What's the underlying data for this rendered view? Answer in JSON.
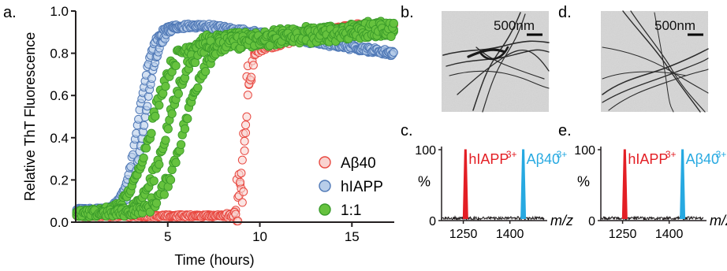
{
  "panels": {
    "a": "a.",
    "b": "b.",
    "c": "c.",
    "d": "d.",
    "e": "e."
  },
  "chart_data": {
    "type": "scatter",
    "ylabel": "Relative ThT Fluorescence",
    "xlabel": "Time (hours)",
    "xlim": [
      0,
      17.3
    ],
    "ylim": [
      0,
      1.0
    ],
    "xticks": [
      "5",
      "10",
      "15"
    ],
    "yticks": [
      "0.0",
      "0.2",
      "0.4",
      "0.6",
      "0.8",
      "1.0"
    ],
    "legend_placement": "bottom-right",
    "series": [
      {
        "name": "Aβ40",
        "color": "#e8473f",
        "fill": "#f9d3d0",
        "curve": {
          "y0": 0.03,
          "ymax": 0.82,
          "x_mid": 9.2,
          "k": 7.0,
          "late_rise_to": 0.93,
          "late_rise_start": 9.8,
          "late_rise_end": 15.0
        }
      },
      {
        "name": "hIAPP",
        "color": "#4f78b6",
        "fill": "#b8cde9",
        "curve": {
          "y0": 0.06,
          "ymax": 0.93,
          "x_mid": 3.6,
          "k": 2.6,
          "plateau_drift_to": 0.8,
          "drift_start": 7.0,
          "drift_end": 17.3
        }
      },
      {
        "name": "1:1",
        "color": "#3a9b2a",
        "fill": "#66c23e",
        "curve": {
          "y0": 0.04,
          "ymax": 0.86,
          "x_mid": 5.0,
          "k": 1.6,
          "late_rise_to": 0.92,
          "late_rise_start": 9.0,
          "late_rise_end": 17.3
        }
      }
    ]
  },
  "tem": {
    "b": {
      "scale_label": "500nm"
    },
    "d": {
      "scale_label": "500nm"
    }
  },
  "mass_spec": {
    "c": {
      "ylabel": "%",
      "xlabel": "m/z",
      "yticks": [
        "0",
        "100"
      ],
      "xticks": [
        "1250",
        "1400"
      ],
      "peaks": [
        {
          "label": "hIAPP",
          "charge": "3+",
          "mz": 1257,
          "height": 100,
          "color": "#e31e24"
        },
        {
          "label": "Aβ40",
          "charge": "3+",
          "mz": 1443,
          "height": 100,
          "color": "#27a9e1"
        }
      ]
    },
    "e": {
      "ylabel": "%",
      "xlabel": "m/z",
      "yticks": [
        "0",
        "100"
      ],
      "xticks": [
        "1250",
        "1400"
      ],
      "peaks": [
        {
          "label": "hIAPP",
          "charge": "3+",
          "mz": 1257,
          "height": 100,
          "color": "#e31e24"
        },
        {
          "label": "Aβ40",
          "charge": "3+",
          "mz": 1443,
          "height": 100,
          "color": "#27a9e1"
        }
      ]
    }
  }
}
